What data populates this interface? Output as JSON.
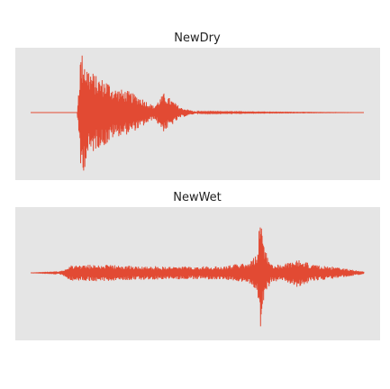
{
  "chart_data": [
    {
      "type": "line",
      "title": "NewDry",
      "xlabel": "",
      "ylabel": "",
      "grid": false,
      "background_color": "#e5e5e5",
      "line_color": "#e24a33",
      "x_range": [
        0,
        1
      ],
      "ylim": [
        -1,
        1
      ],
      "envelope_keypoints": {
        "x": [
          0.0,
          0.14,
          0.15,
          0.16,
          0.17,
          0.2,
          0.23,
          0.25,
          0.29,
          0.33,
          0.37,
          0.4,
          0.45,
          0.5,
          1.0
        ],
        "amplitude": [
          0.0,
          0.0,
          0.93,
          0.9,
          0.72,
          0.55,
          0.5,
          0.38,
          0.34,
          0.24,
          0.1,
          0.3,
          0.08,
          0.01,
          0.0
        ]
      }
    },
    {
      "type": "line",
      "title": "NewWet",
      "xlabel": "",
      "ylabel": "",
      "grid": false,
      "background_color": "#e5e5e5",
      "line_color": "#e24a33",
      "x_range": [
        0,
        1
      ],
      "ylim": [
        -1,
        1
      ],
      "envelope_keypoints": {
        "x": [
          0.0,
          0.08,
          0.1,
          0.12,
          0.2,
          0.3,
          0.4,
          0.5,
          0.58,
          0.62,
          0.66,
          0.68,
          0.69,
          0.7,
          0.72,
          0.75,
          0.8,
          0.85,
          0.9,
          0.95,
          1.0
        ],
        "amplitude": [
          0.0,
          0.01,
          0.05,
          0.12,
          0.13,
          0.11,
          0.1,
          0.1,
          0.1,
          0.14,
          0.18,
          0.3,
          0.98,
          0.4,
          0.15,
          0.12,
          0.22,
          0.12,
          0.1,
          0.06,
          0.02
        ]
      }
    }
  ]
}
